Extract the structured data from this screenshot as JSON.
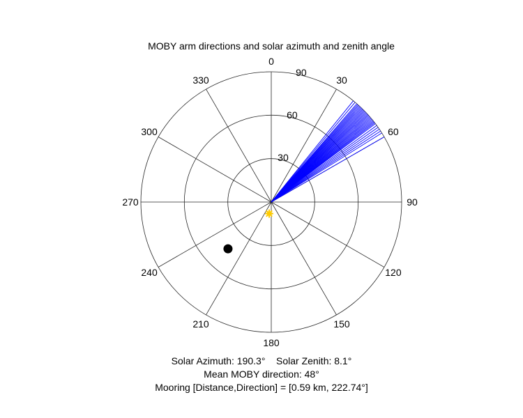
{
  "chart_data": {
    "type": "polar",
    "title": "MOBY arm directions and solar azimuth and zenith angle",
    "theta_direction": "clockwise",
    "theta_zero": "top",
    "theta_ticks": [
      0,
      30,
      60,
      90,
      120,
      150,
      180,
      210,
      240,
      270,
      300,
      330
    ],
    "theta_tick_labels": [
      "0",
      "30",
      "60",
      "90",
      "120",
      "150",
      "180",
      "210",
      "240",
      "270",
      "300",
      "330"
    ],
    "r_range": [
      0,
      90
    ],
    "r_ticks": [
      30,
      60,
      90
    ],
    "r_tick_labels": [
      "30",
      "60",
      "90"
    ],
    "grid": true,
    "series": [
      {
        "kind": "rays",
        "color": "#0000ff",
        "directions_deg": [
          39,
          40,
          41,
          41.5,
          42,
          42.5,
          43,
          43.5,
          44,
          44.5,
          45,
          45.5,
          46,
          46.5,
          47,
          47.5,
          48,
          48.5,
          49,
          49.5,
          50,
          50.5,
          51,
          51.5,
          52,
          52.5,
          53,
          54,
          55,
          56,
          57,
          58
        ],
        "length_r": 90
      },
      {
        "kind": "ray",
        "color": "#0000ff",
        "direction_deg": 60,
        "length_r": 90
      },
      {
        "kind": "point",
        "marker": "sun",
        "color": "#ffcc00",
        "theta_deg": 190.3,
        "r": 8.1
      },
      {
        "kind": "point",
        "marker": "dot",
        "color": "#000000",
        "theta_deg": 222.74,
        "r": 44
      }
    ]
  },
  "captions": {
    "line1": "Solar Azimuth: 190.3°    Solar Zenith: 8.1°",
    "line2": "Mean MOBY direction: 48°",
    "line3": "Mooring [Distance,Direction] = [0.59 km, 222.74°]"
  }
}
